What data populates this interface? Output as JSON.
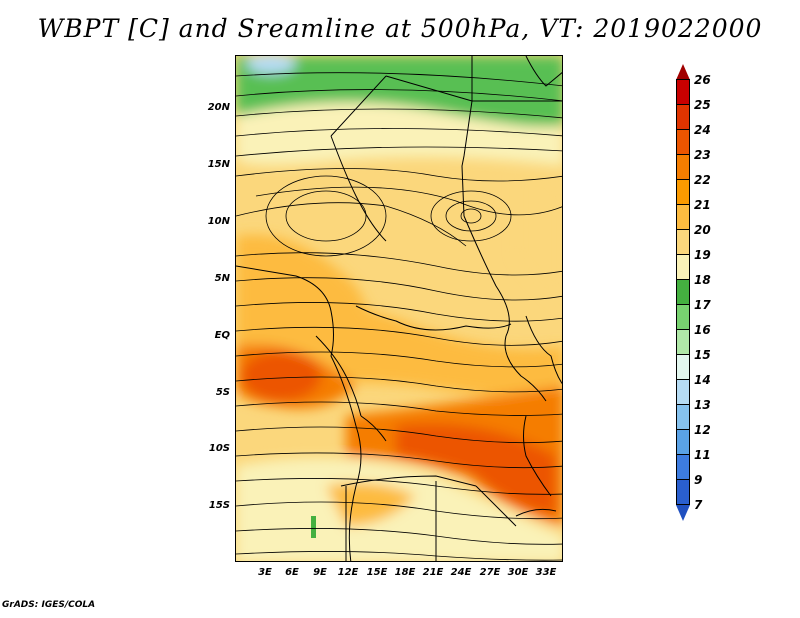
{
  "title": "WBPT [C] and Sreamline at 500hPa, VT: 2019022000",
  "footer": "GrADS: IGES/COLA",
  "lat_labels": [
    "20N",
    "15N",
    "10N",
    "5N",
    "EQ",
    "5S",
    "10S",
    "15S"
  ],
  "lon_labels": [
    "3E",
    "6E",
    "9E",
    "12E",
    "15E",
    "18E",
    "21E",
    "24E",
    "27E",
    "30E",
    "33E"
  ],
  "colorbar": {
    "labels": [
      "26",
      "25",
      "24",
      "23",
      "22",
      "21",
      "20",
      "19",
      "18",
      "17",
      "16",
      "15",
      "14",
      "13",
      "12",
      "11",
      "9",
      "7"
    ],
    "colors": [
      "#a00000",
      "#c80000",
      "#e03400",
      "#ec5500",
      "#f57d00",
      "#fb9a00",
      "#fdbb40",
      "#fbd77c",
      "#faf2b8",
      "#44b040",
      "#78d270",
      "#b0e8a8",
      "#e3f7ef",
      "#b6dcf4",
      "#86c2ee",
      "#5aa2e6",
      "#3d7ce0",
      "#2a5fcf",
      "#2050c0"
    ]
  }
}
